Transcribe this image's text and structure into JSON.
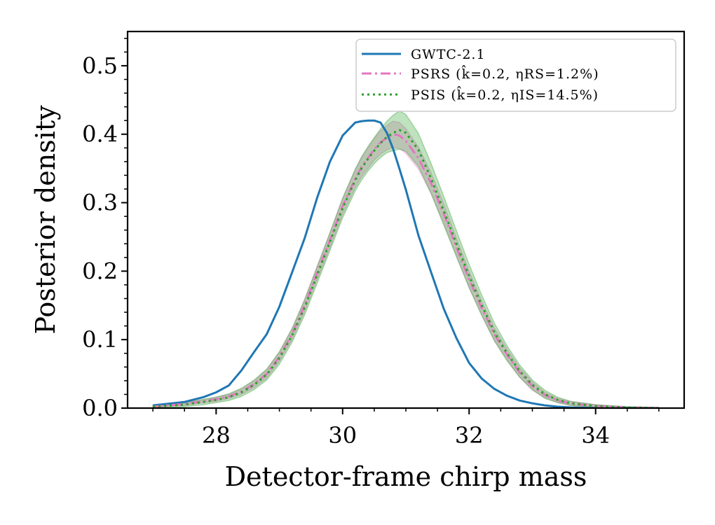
{
  "chart_data": {
    "type": "line",
    "title": "",
    "xlabel": "Detector-frame chirp mass",
    "ylabel": "Posterior density",
    "xlim": [
      26.6,
      35.4
    ],
    "ylim": [
      0.0,
      0.55
    ],
    "xticks": [
      28,
      30,
      32,
      34
    ],
    "xtick_labels": [
      "28",
      "30",
      "32",
      "34"
    ],
    "yticks": [
      0.0,
      0.1,
      0.2,
      0.3,
      0.4,
      0.5
    ],
    "ytick_labels": [
      "0.0",
      "0.1",
      "0.2",
      "0.3",
      "0.4",
      "0.5"
    ],
    "grid": false,
    "legend_position": "top-right",
    "x": [
      27.0,
      27.5,
      27.8,
      28.0,
      28.2,
      28.4,
      28.6,
      28.8,
      29.0,
      29.2,
      29.4,
      29.6,
      29.8,
      30.0,
      30.2,
      30.3,
      30.4,
      30.5,
      30.6,
      30.7,
      30.8,
      30.9,
      31.0,
      31.2,
      31.4,
      31.6,
      31.8,
      32.0,
      32.2,
      32.4,
      32.6,
      32.8,
      33.0,
      33.2,
      33.4,
      33.6,
      34.0,
      34.5,
      35.0
    ],
    "series": [
      {
        "name": "GWTC-2.1",
        "color": "#1f77b4",
        "style": "solid",
        "values": [
          0.004,
          0.009,
          0.016,
          0.023,
          0.033,
          0.055,
          0.082,
          0.108,
          0.148,
          0.198,
          0.248,
          0.308,
          0.36,
          0.398,
          0.417,
          0.419,
          0.42,
          0.42,
          0.417,
          0.402,
          0.378,
          0.349,
          0.319,
          0.252,
          0.198,
          0.145,
          0.102,
          0.066,
          0.043,
          0.028,
          0.018,
          0.011,
          0.007,
          0.004,
          0.002,
          0.001,
          0.0,
          0.0,
          0.0
        ]
      },
      {
        "name": "PSRS ($\\hat{k}$=0.2, $\\eta_{RS}$=1.2%)",
        "legend_label": "PSRS (k̂=0.2, ηRS=1.2%)",
        "color": "#e377c2",
        "style": "dashdot",
        "band_color": "#e377c2",
        "band_halfwidth": [
          0.001,
          0.002,
          0.002,
          0.003,
          0.003,
          0.004,
          0.005,
          0.006,
          0.007,
          0.008,
          0.009,
          0.01,
          0.011,
          0.012,
          0.013,
          0.014,
          0.015,
          0.016,
          0.017,
          0.018,
          0.019,
          0.019,
          0.018,
          0.016,
          0.015,
          0.014,
          0.013,
          0.012,
          0.01,
          0.009,
          0.008,
          0.007,
          0.006,
          0.004,
          0.003,
          0.003,
          0.002,
          0.001,
          0.001
        ],
        "values": [
          0.002,
          0.006,
          0.01,
          0.013,
          0.017,
          0.024,
          0.035,
          0.05,
          0.075,
          0.108,
          0.15,
          0.198,
          0.245,
          0.295,
          0.335,
          0.352,
          0.365,
          0.378,
          0.388,
          0.395,
          0.4,
          0.398,
          0.39,
          0.365,
          0.328,
          0.284,
          0.235,
          0.188,
          0.146,
          0.108,
          0.078,
          0.052,
          0.032,
          0.019,
          0.011,
          0.007,
          0.003,
          0.001,
          0.0
        ]
      },
      {
        "name": "PSIS ($\\hat{k}$=0.2, $\\eta_{IS}$=14.5%)",
        "legend_label": "PSIS (k̂=0.2, ηIS=14.5%)",
        "color": "#2ca02c",
        "style": "dotted",
        "band_color": "#2ca02c",
        "band_halfwidth": [
          0.002,
          0.003,
          0.004,
          0.004,
          0.005,
          0.006,
          0.007,
          0.008,
          0.009,
          0.01,
          0.011,
          0.012,
          0.013,
          0.014,
          0.016,
          0.017,
          0.018,
          0.019,
          0.021,
          0.023,
          0.026,
          0.028,
          0.027,
          0.024,
          0.022,
          0.021,
          0.019,
          0.017,
          0.015,
          0.013,
          0.011,
          0.009,
          0.007,
          0.006,
          0.004,
          0.003,
          0.002,
          0.001,
          0.001
        ],
        "values": [
          0.002,
          0.005,
          0.009,
          0.012,
          0.016,
          0.023,
          0.034,
          0.049,
          0.073,
          0.106,
          0.147,
          0.195,
          0.243,
          0.292,
          0.333,
          0.35,
          0.364,
          0.376,
          0.387,
          0.396,
          0.402,
          0.406,
          0.402,
          0.377,
          0.335,
          0.288,
          0.24,
          0.193,
          0.15,
          0.111,
          0.08,
          0.054,
          0.034,
          0.02,
          0.012,
          0.007,
          0.003,
          0.001,
          0.0
        ]
      }
    ]
  }
}
